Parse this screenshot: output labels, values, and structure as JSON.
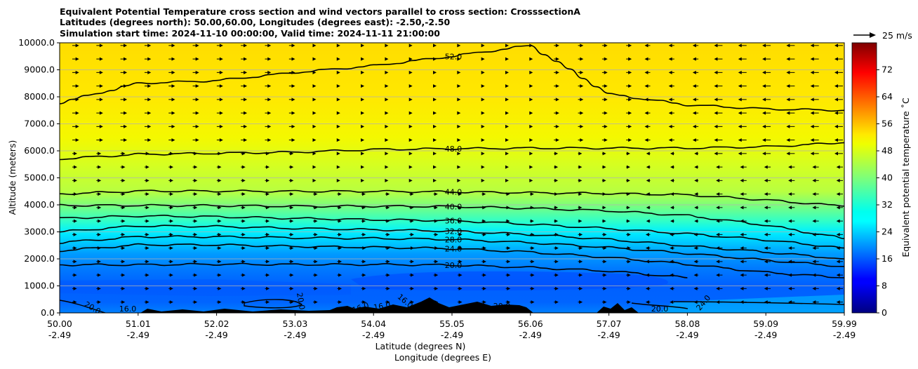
{
  "chart_data": {
    "type": "heatmap",
    "title_lines": [
      "Equivalent Potential Temperature cross section and wind vectors parallel to cross section: CrosssectionA",
      "Latitudes (degrees north): 50.00,60.00, Longitudes (degrees east): -2.50,-2.50",
      "Simulation start time: 2024-11-10 00:00:00, Valid time: 2024-11-11 21:00:00"
    ],
    "ylabel": "Altitude (meters)",
    "xlabel_primary": "Latitude (degrees N)",
    "xlabel_secondary": "Longitude (degrees E)",
    "ylim": [
      0,
      10000
    ],
    "y_ticks": [
      "0.0",
      "1000.0",
      "2000.0",
      "3000.0",
      "4000.0",
      "5000.0",
      "6000.0",
      "7000.0",
      "8000.0",
      "9000.0",
      "10000.0"
    ],
    "x_ticks_lat": [
      "50.00",
      "51.01",
      "52.02",
      "53.03",
      "54.04",
      "55.05",
      "56.06",
      "57.07",
      "58.08",
      "59.09",
      "59.99"
    ],
    "x_ticks_lon": [
      "-2.49",
      "-2.49",
      "-2.49",
      "-2.49",
      "-2.49",
      "-2.49",
      "-2.49",
      "-2.49",
      "-2.49",
      "-2.49",
      "-2.49"
    ],
    "grid": "horizontal",
    "colorbar": {
      "label": "Equivalent potential temperature $^\\circ$C",
      "label_display": "Equivalent potential temperature ˚C",
      "ticks": [
        "0",
        "8",
        "16",
        "24",
        "32",
        "40",
        "48",
        "56",
        "64",
        "72"
      ],
      "range": [
        0,
        80
      ],
      "colormap": "jet"
    },
    "quiver_key": "25 m/s",
    "contour_levels": [
      {
        "value": 20,
        "label": "20.0",
        "heights": [
          1780,
          1780,
          1800,
          1790,
          1790,
          1770,
          1680,
          1550,
          1300,
          null,
          null
        ]
      },
      {
        "value": 24,
        "label": "24.0",
        "heights": [
          2300,
          2520,
          2520,
          2460,
          2430,
          2380,
          2250,
          2050,
          1800,
          1500,
          1300
        ]
      },
      {
        "value": 28,
        "label": "28.0",
        "heights": [
          2600,
          2820,
          2820,
          2780,
          2760,
          2720,
          2600,
          2420,
          2200,
          1950,
          1720
        ]
      },
      {
        "value": 32,
        "label": "32.0",
        "heights": [
          3000,
          3220,
          3200,
          3130,
          3080,
          3030,
          2900,
          2720,
          2480,
          2250,
          2000
        ]
      },
      {
        "value": 36,
        "label": "36.0",
        "heights": [
          3500,
          3590,
          3560,
          3500,
          3450,
          3420,
          3280,
          3120,
          2930,
          2700,
          2400
        ]
      },
      {
        "value": 40,
        "label": "40.0",
        "heights": [
          3980,
          3980,
          3970,
          3950,
          3950,
          3940,
          3870,
          3780,
          3600,
          3250,
          2750
        ]
      },
      {
        "value": 44,
        "label": "44.0",
        "heights": [
          4400,
          4510,
          4510,
          4500,
          4500,
          4480,
          4450,
          4420,
          4370,
          4180,
          3950
        ]
      },
      {
        "value": 48,
        "label": "48.0",
        "heights": [
          5700,
          5870,
          5910,
          5950,
          6050,
          6080,
          6100,
          6100,
          6100,
          6150,
          6300
        ]
      },
      {
        "value": 52,
        "label": "52.0",
        "heights": [
          7780,
          8500,
          8600,
          8900,
          9150,
          9500,
          9900,
          8100,
          7700,
          7550,
          7500
        ]
      }
    ],
    "contour_labels_near_surface": [
      "20.0",
      "16.0",
      "20.0",
      "16.0",
      "16.0",
      "16.0",
      "20.0",
      "20.0",
      "24.0"
    ]
  }
}
